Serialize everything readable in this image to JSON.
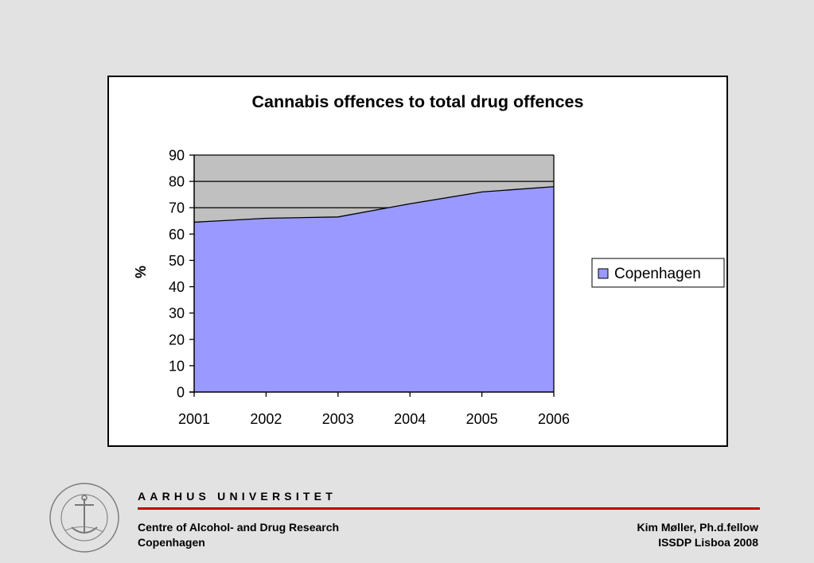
{
  "chart_data": {
    "type": "area",
    "title": "Cannabis offences to total drug offences",
    "xlabel": "",
    "ylabel": "%",
    "x": [
      2001,
      2002,
      2003,
      2004,
      2005,
      2006
    ],
    "x_tick_labels": [
      "2001",
      "2002",
      "2003",
      "2004",
      "2005",
      "2006"
    ],
    "y_ticks": [
      0,
      10,
      20,
      30,
      40,
      50,
      60,
      70,
      80,
      90
    ],
    "ylim": [
      0,
      90
    ],
    "grid": true,
    "legend_position": "right",
    "series": [
      {
        "name": "Copenhagen",
        "values": [
          64.5,
          66,
          66.5,
          71.5,
          76,
          78
        ],
        "color": "#9999ff"
      }
    ],
    "plot_background": "#c0c0c0"
  },
  "footer": {
    "university": "AARHUS UNIVERSITET",
    "left_line1": "Centre of Alcohol- and Drug Research",
    "left_line2": "Copenhagen",
    "right_line1": "Kim Møller, Ph.d.fellow",
    "right_line2": "ISSDP Lisboa 2008",
    "seal_text": "SOLIDUM PETIT IN PROFUNDIS · UNIVERSITAS ARHUSIENSIS",
    "rule_color": "#c00000"
  }
}
